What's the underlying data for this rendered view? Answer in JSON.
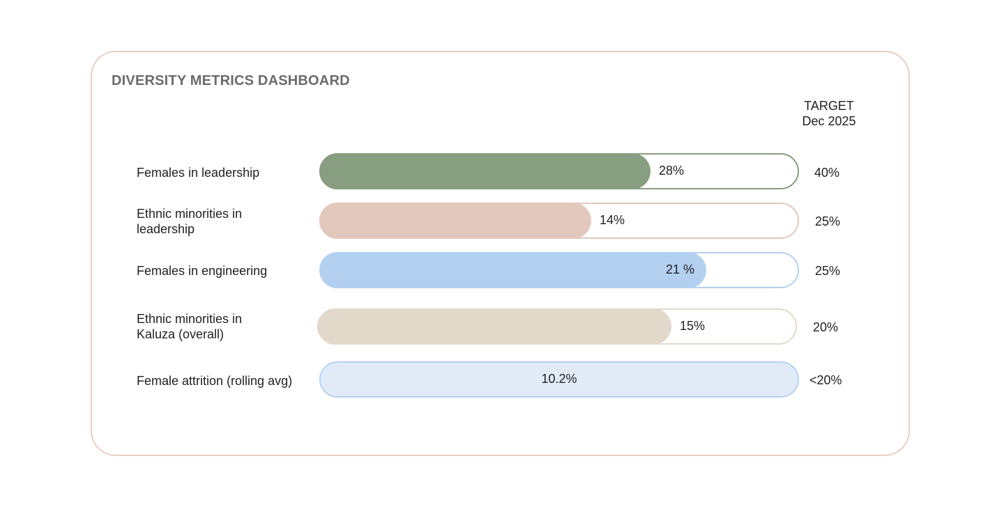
{
  "title": "DIVERSITY METRICS DASHBOARD",
  "target_header": {
    "line1": "TARGET",
    "line2": "Dec 2025"
  },
  "metrics": [
    {
      "label_line1": "Females in leadership",
      "label_line2": "",
      "value_text": "28%",
      "fill_fraction": 0.69,
      "target": "40%",
      "fill_color": "#889e80",
      "border_color": "#889e80"
    },
    {
      "label_line1": "Ethnic minorities in",
      "label_line2": "leadership",
      "value_text": "14%",
      "fill_fraction": 0.567,
      "target": "25%",
      "fill_color": "#e2c8bc",
      "border_color": "#e2c8bc"
    },
    {
      "label_line1": "Females in engineering",
      "label_line2": "",
      "value_text": "21 %",
      "fill_fraction": 0.807,
      "target": "25%",
      "fill_color": "#b3d0f1",
      "border_color": "#b3d0f1"
    },
    {
      "label_line1": "Ethnic minorities in",
      "label_line2": "Kaluza (overall)",
      "value_text": "15%",
      "fill_fraction": 0.738,
      "target": "20%",
      "fill_color": "#e2d9cb",
      "border_color": "#e2d9cb"
    },
    {
      "label_line1": "Female attrition (rolling avg)",
      "label_line2": "",
      "value_text": "10.2%",
      "fill_fraction": 1.0,
      "target": "<20%",
      "fill_color": "#e1ebf7",
      "border_color": "#b3d0f1"
    }
  ]
}
